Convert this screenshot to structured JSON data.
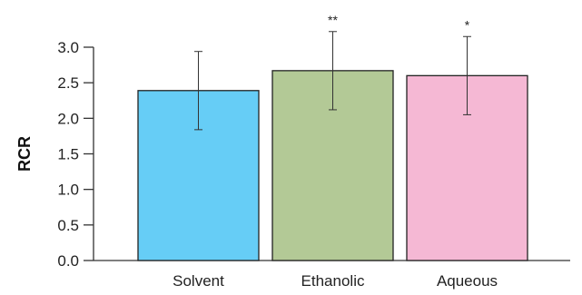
{
  "chart_data": {
    "type": "bar",
    "ylabel": "RCR",
    "xlabel": "",
    "title": "",
    "ylim": [
      0,
      3.0
    ],
    "yticks": [
      "0.0",
      "0.5",
      "1.0",
      "1.5",
      "2.0",
      "2.5",
      "3.0"
    ],
    "categories": [
      "Solvent",
      "Ethanolic",
      "Aqueous"
    ],
    "values": [
      2.39,
      2.67,
      2.6
    ],
    "errors": [
      0.55,
      0.55,
      0.55
    ],
    "significance": [
      "",
      "**",
      "*"
    ],
    "colors": [
      "#66cdf6",
      "#b3c996",
      "#f5b8d4"
    ],
    "grid": false,
    "legend": "none"
  }
}
